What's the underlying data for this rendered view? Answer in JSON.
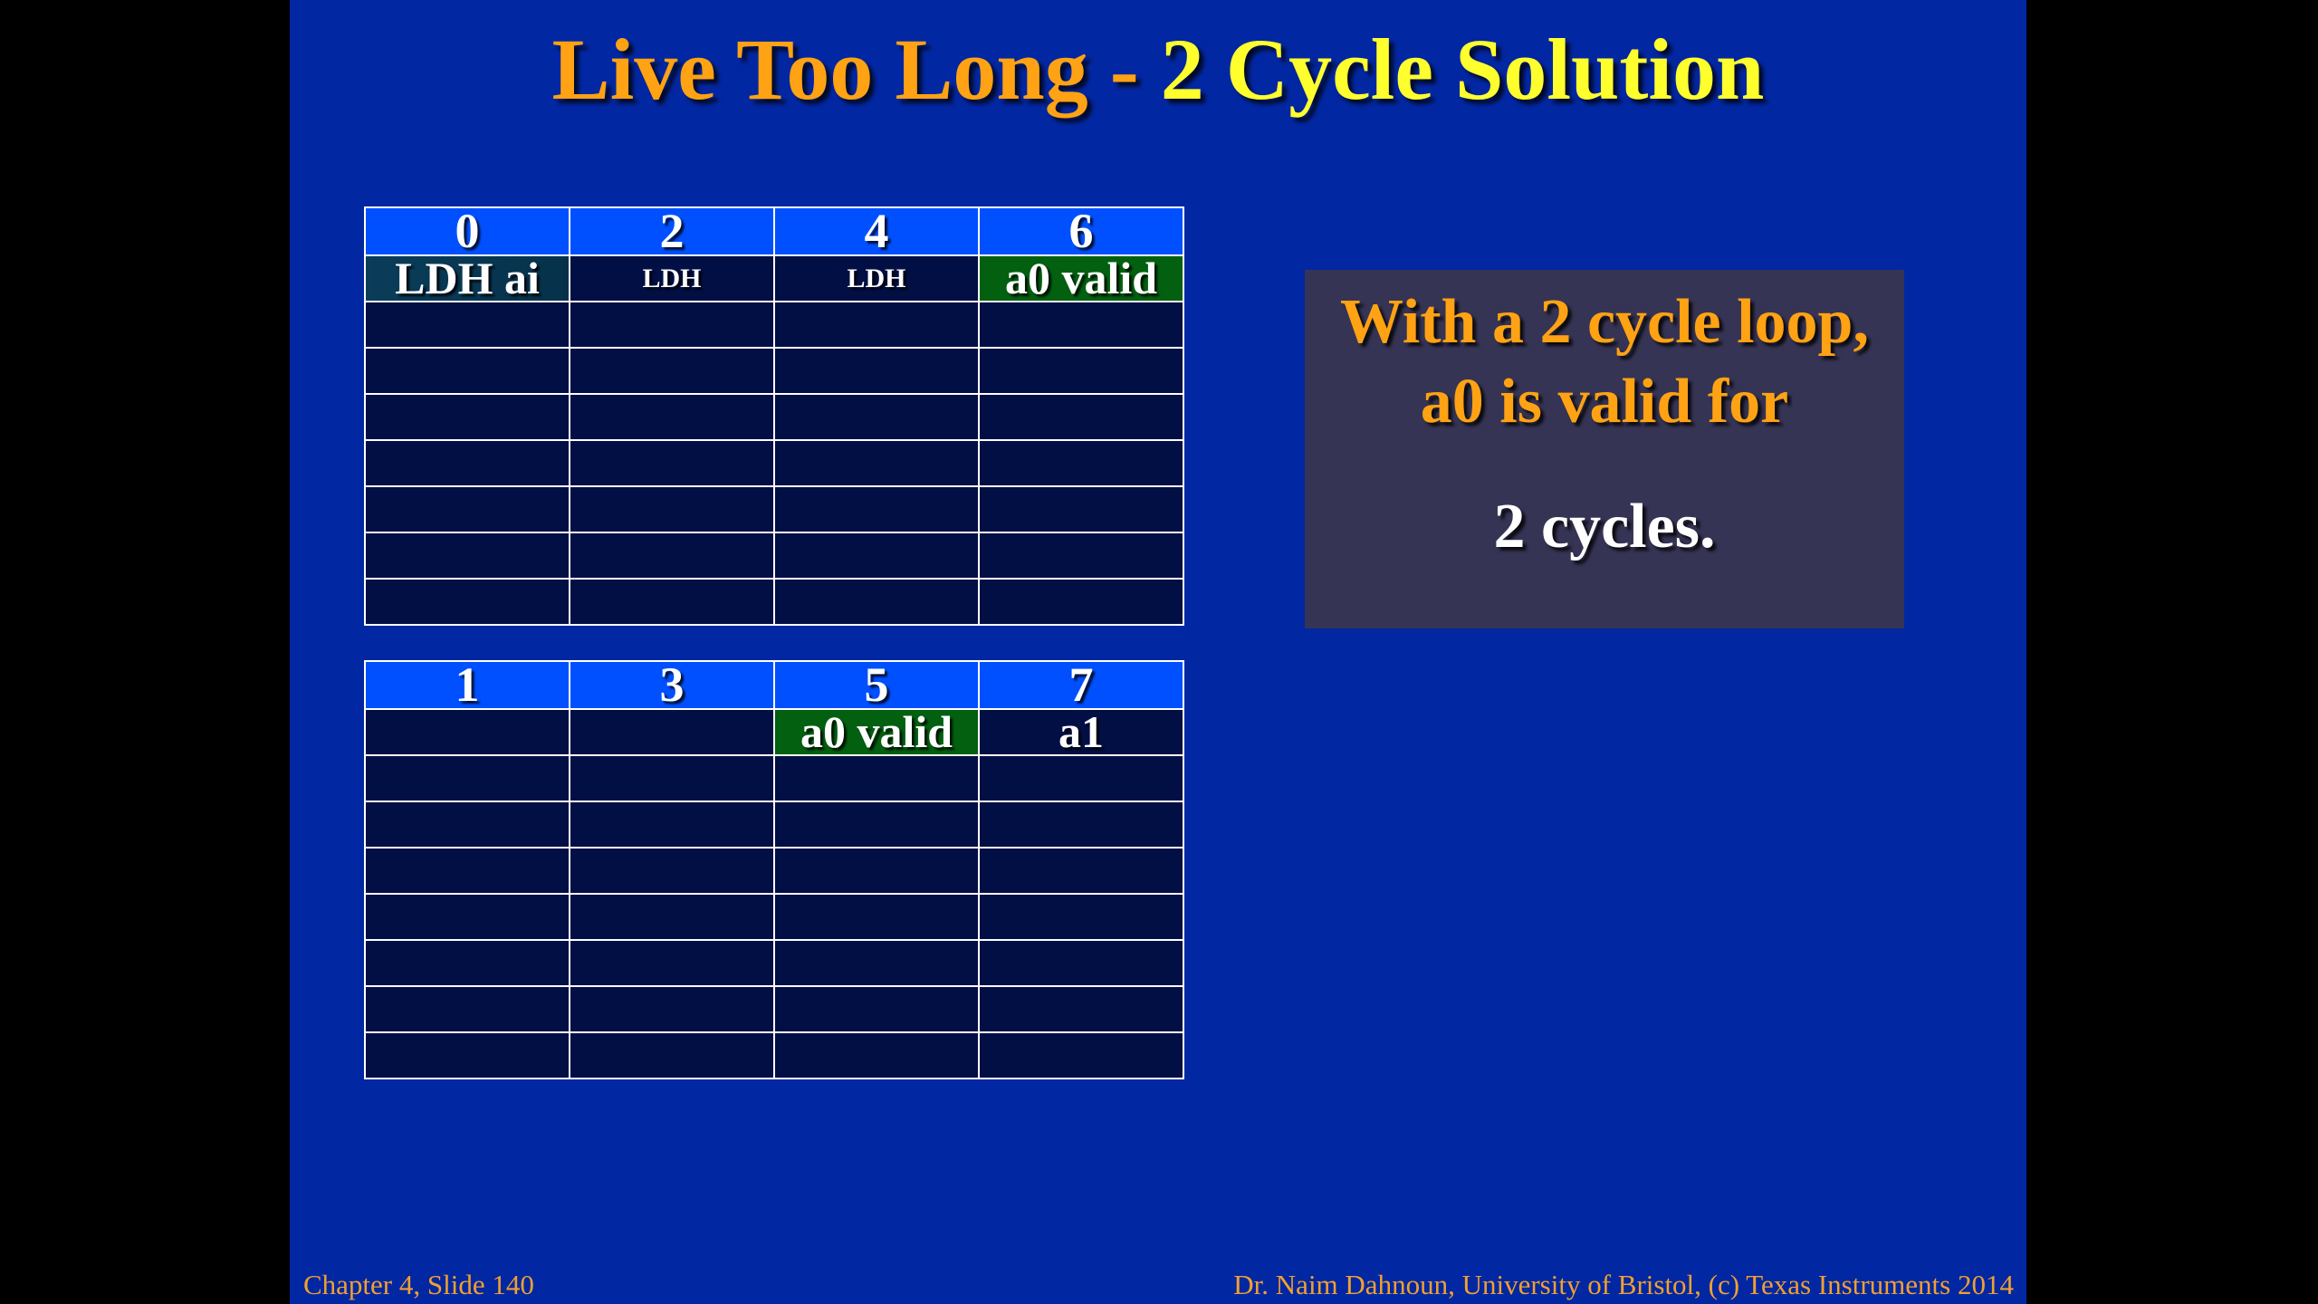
{
  "slide": {
    "title_part1": "Live Too Long - ",
    "title_part2": "2 Cycle Solution",
    "top_table": {
      "headers": [
        "0",
        "2",
        "4",
        "6"
      ],
      "row1": [
        "LDH ai",
        "LDH",
        "LDH",
        "a0 valid"
      ]
    },
    "bottom_table": {
      "headers": [
        "1",
        "3",
        "5",
        "7"
      ],
      "row1": [
        "",
        "",
        "a0 valid",
        "a1"
      ]
    },
    "note": {
      "line1": "With a 2 cycle loop,",
      "line2": "a0 is valid for",
      "line3": "2 cycles."
    },
    "footer_left": "Chapter 4, Slide 140",
    "footer_right": "Dr. Naim Dahnoun, University of Bristol,  (c) Texas Instruments 2014",
    "colors": {
      "slide_bg": "#0227a2",
      "title_orange": "#ffa213",
      "title_yellow": "#ffff2e",
      "header_blue": "#0050ff",
      "cell_dark": "#020f44",
      "valid_green": "#026010",
      "note_bg": "#363454"
    }
  }
}
